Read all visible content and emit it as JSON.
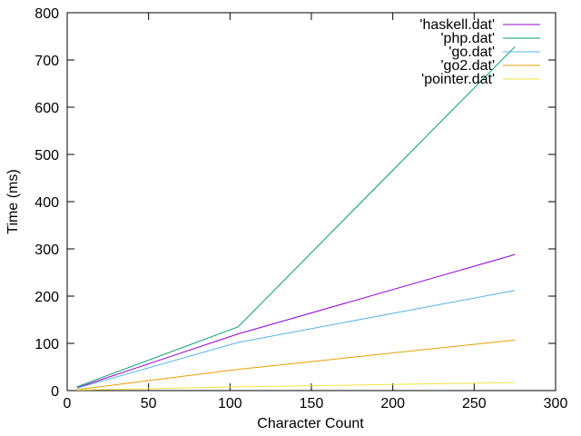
{
  "chart_data": {
    "type": "line",
    "xlabel": "Character Count",
    "ylabel": "Time (ms)",
    "xlim": [
      0,
      300
    ],
    "ylim": [
      0,
      800
    ],
    "xticks": [
      0,
      50,
      100,
      150,
      200,
      250,
      300
    ],
    "yticks": [
      0,
      100,
      200,
      300,
      400,
      500,
      600,
      700,
      800
    ],
    "grid": false,
    "legend_position": "top-right",
    "series": [
      {
        "name": "'haskell.dat'",
        "color": "#9400d3",
        "x": [
          6,
          105,
          275
        ],
        "y": [
          6,
          120,
          288
        ]
      },
      {
        "name": "'php.dat'",
        "color": "#009e73",
        "x": [
          6,
          105,
          275
        ],
        "y": [
          8,
          135,
          728
        ]
      },
      {
        "name": "'go.dat'",
        "color": "#56b4e9",
        "x": [
          6,
          105,
          275
        ],
        "y": [
          5,
          102,
          212
        ]
      },
      {
        "name": "'go2.dat'",
        "color": "#e69f00",
        "x": [
          6,
          105,
          275
        ],
        "y": [
          2,
          45,
          107
        ]
      },
      {
        "name": "'pointer.dat'",
        "color": "#f0e442",
        "x": [
          6,
          105,
          275
        ],
        "y": [
          1,
          8,
          17
        ]
      }
    ]
  }
}
